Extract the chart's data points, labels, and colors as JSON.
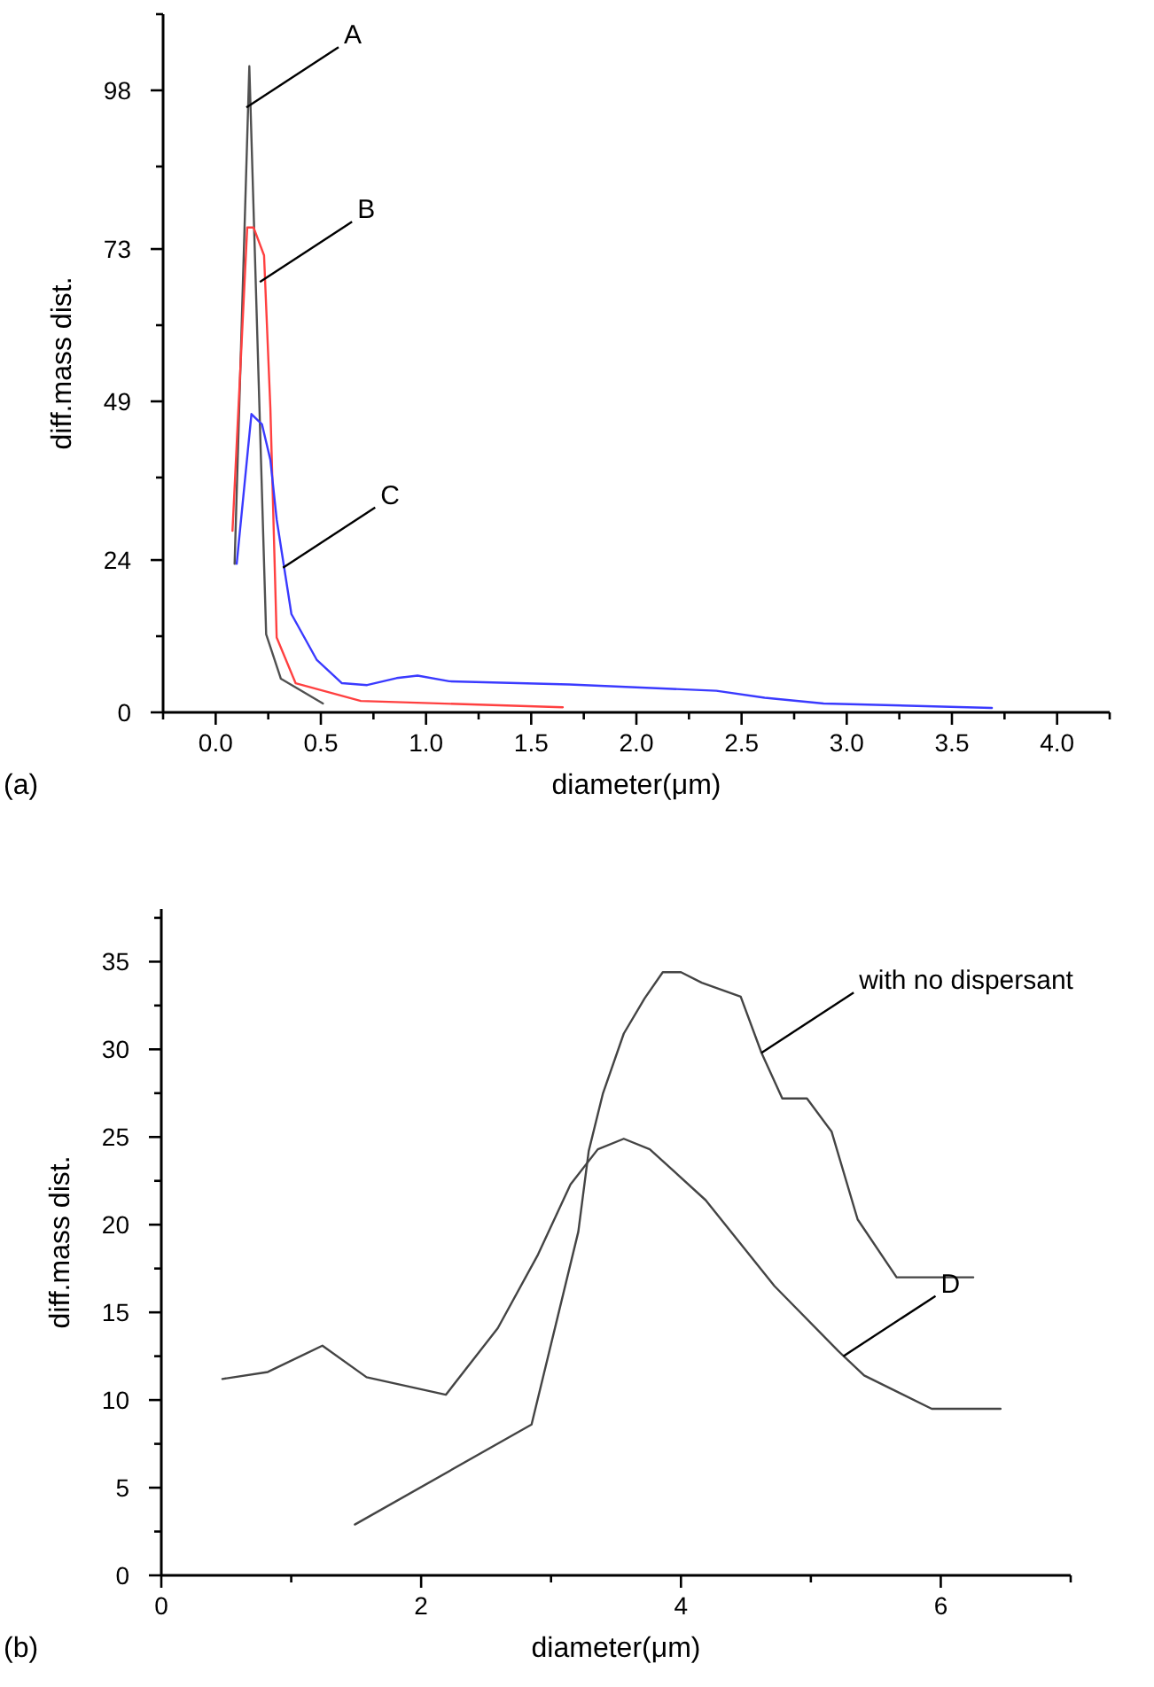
{
  "chart_data": [
    {
      "type": "line",
      "xlabel": "diameter(μm)",
      "ylabel": "diff.mass dist.",
      "xlim": [
        -0.25,
        4.25
      ],
      "ylim": [
        0,
        110
      ],
      "xticks": [
        {
          "value": -0.25,
          "label": null
        },
        {
          "value": 0,
          "label": "0.0"
        },
        {
          "value": 0.25,
          "label": null
        },
        {
          "value": 0.5,
          "label": "0.5"
        },
        {
          "value": 0.75,
          "label": null
        },
        {
          "value": 1,
          "label": "1.0"
        },
        {
          "value": 1.25,
          "label": null
        },
        {
          "value": 1.5,
          "label": "1.5"
        },
        {
          "value": 1.75,
          "label": null
        },
        {
          "value": 2,
          "label": "2.0"
        },
        {
          "value": 2.25,
          "label": null
        },
        {
          "value": 2.5,
          "label": "2.5"
        },
        {
          "value": 2.75,
          "label": null
        },
        {
          "value": 3,
          "label": "3.0"
        },
        {
          "value": 3.25,
          "label": null
        },
        {
          "value": 3.5,
          "label": "3.5"
        },
        {
          "value": 3.75,
          "label": null
        },
        {
          "value": 4,
          "label": "4.0"
        },
        {
          "value": 4.25,
          "label": null
        }
      ],
      "yticks": [
        0,
        {
          "value": 12,
          "label": null
        },
        24,
        {
          "value": 37,
          "label": null
        },
        49,
        {
          "value": 61,
          "label": null
        },
        73,
        {
          "value": 86,
          "label": null
        },
        98,
        {
          "value": 110,
          "label": null
        }
      ],
      "series": [
        {
          "color": "#505050",
          "x": [
            0.09,
            0.16,
            0.24,
            0.31,
            0.51
          ],
          "values": [
            23.4,
            101.8,
            12.3,
            5.3,
            1.4
          ]
        },
        {
          "color": "#ff4040",
          "x": [
            0.08,
            0.15,
            0.18,
            0.23,
            0.26,
            0.29,
            0.38,
            0.69,
            1.65
          ],
          "values": [
            28.6,
            76.4,
            76.4,
            72,
            48,
            11.8,
            4.6,
            1.8,
            0.8
          ]
        },
        {
          "color": "#3a3aff",
          "x": [
            0.1,
            0.17,
            0.22,
            0.26,
            0.29,
            0.36,
            0.48,
            0.6,
            0.72,
            0.86,
            0.96,
            1.11,
            1.68,
            2.38,
            2.61,
            2.89,
            3.69
          ],
          "values": [
            23.4,
            47,
            45.4,
            39.8,
            30.4,
            15.5,
            8.3,
            4.6,
            4.3,
            5.4,
            5.8,
            4.9,
            4.4,
            3.4,
            2.3,
            1.4,
            0.7
          ]
        }
      ],
      "annotations": [
        {
          "text": "A",
          "x": 0.146,
          "y": 95.3
        },
        {
          "text": "B",
          "x": 0.21,
          "y": 67.8
        },
        {
          "text": "C",
          "x": 0.32,
          "y": 22.8
        },
        "(a)"
      ]
    },
    {
      "type": "line",
      "xlabel": "diameter(μm)",
      "ylabel": "diff.mass dist.",
      "xlim": [
        0,
        7
      ],
      "ylim": [
        0,
        38
      ],
      "xticks": [
        0,
        {
          "value": 1,
          "label": null
        },
        2,
        {
          "value": 3,
          "label": null
        },
        4,
        {
          "value": 5,
          "label": null
        },
        6,
        {
          "value": 7,
          "label": null
        }
      ],
      "yticks": [
        0,
        {
          "value": 2.5,
          "label": null
        },
        5,
        {
          "value": 7.5,
          "label": null
        },
        10,
        {
          "value": 12.5,
          "label": null
        },
        15,
        {
          "value": 17.5,
          "label": null
        },
        20,
        {
          "value": 22.5,
          "label": null
        },
        25,
        {
          "value": 27.5,
          "label": null
        },
        30,
        {
          "value": 32.5,
          "label": null
        },
        35,
        {
          "value": 37.5,
          "label": null
        }
      ],
      "series": [
        {
          "color": "#444444",
          "x": [
            1.49,
            2.85,
            3.21,
            3.29,
            3.4,
            3.56,
            3.72,
            3.86,
            4.0,
            4.16,
            4.46,
            4.62,
            4.78,
            4.97,
            5.16,
            5.36,
            5.66,
            6.25
          ],
          "values": [
            2.9,
            8.6,
            19.6,
            24.2,
            27.5,
            30.9,
            32.9,
            34.4,
            34.4,
            33.8,
            33.0,
            29.8,
            27.2,
            27.2,
            25.3,
            20.3,
            17.0,
            17.0
          ]
        },
        {
          "color": "#444444",
          "x": [
            0.47,
            0.82,
            1.24,
            1.58,
            2.19,
            2.59,
            2.9,
            3.15,
            3.36,
            3.56,
            3.76,
            4.19,
            4.72,
            5.21,
            5.41,
            5.93,
            6.46
          ],
          "values": [
            11.2,
            11.6,
            13.1,
            11.3,
            10.3,
            14.1,
            18.3,
            22.3,
            24.3,
            24.9,
            24.3,
            21.4,
            16.5,
            12.8,
            11.4,
            9.5,
            9.5
          ]
        }
      ],
      "annotations": [
        {
          "text": "with no dispersant",
          "x": 4.62,
          "y": 29.8
        },
        {
          "text": "D",
          "x": 5.25,
          "y": 12.5
        },
        "(b)"
      ]
    }
  ]
}
